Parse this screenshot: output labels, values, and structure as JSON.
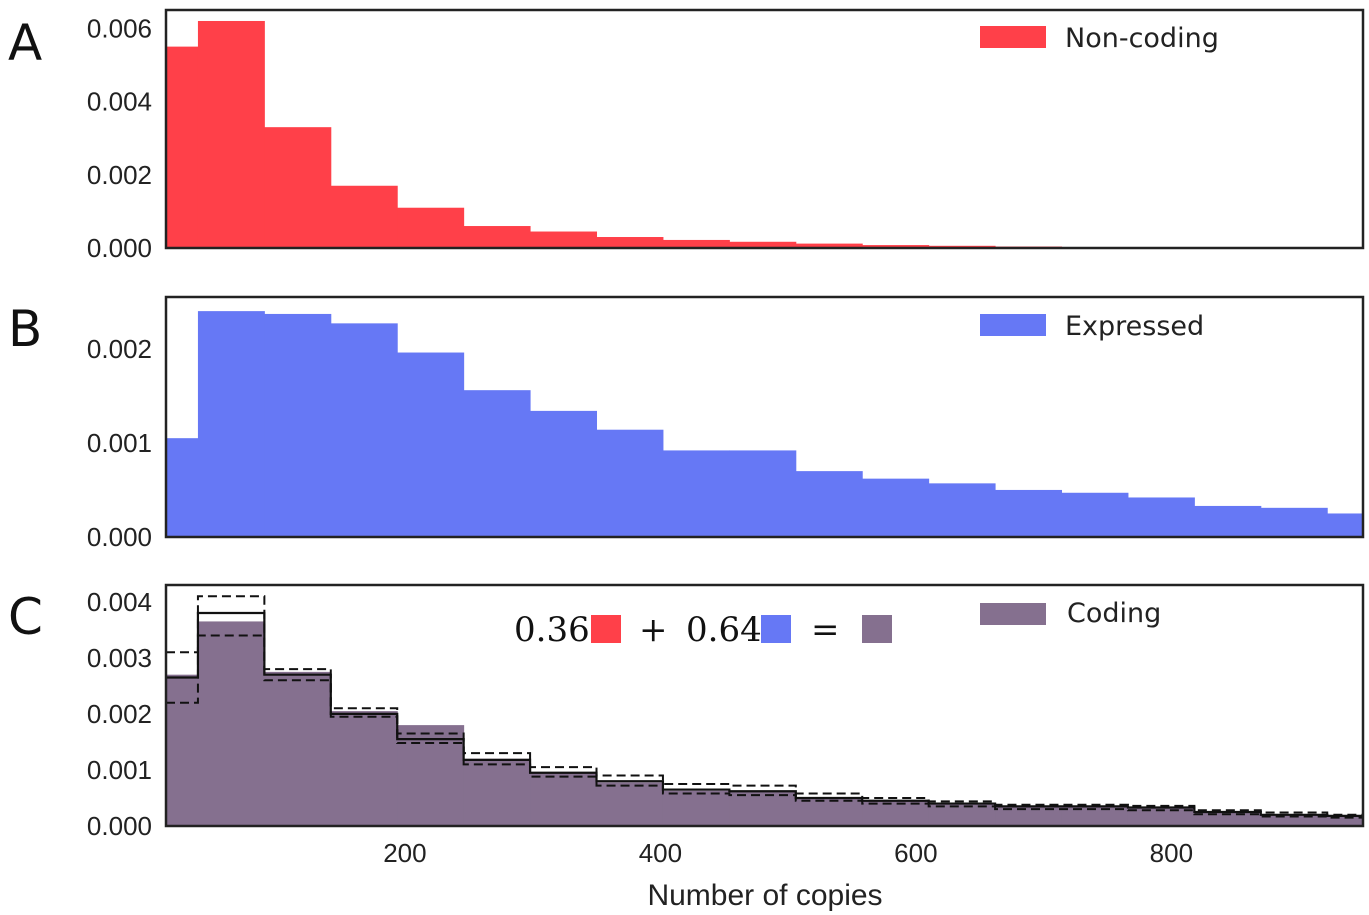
{
  "chart_data": [
    {
      "type": "bar",
      "panel_label": "A",
      "legend": "Non-coding",
      "color": "#ff4049",
      "edges": [
        13,
        38,
        90,
        142,
        194,
        246,
        298,
        350,
        402,
        454,
        506,
        558,
        610,
        662,
        714,
        766,
        818,
        870,
        922,
        950
      ],
      "values": [
        0.0055,
        0.0062,
        0.0033,
        0.0017,
        0.0011,
        0.0006,
        0.00045,
        0.0003,
        0.00022,
        0.00017,
        0.00012,
        8e-05,
        6e-05,
        4e-05,
        2e-05,
        1e-05,
        1e-05,
        1e-05,
        5e-06
      ],
      "ylim": [
        0,
        0.0065
      ],
      "yticks": [
        0.0,
        0.002,
        0.004,
        0.006
      ],
      "ytick_labels": [
        "0.000",
        "0.002",
        "0.004",
        "0.006"
      ]
    },
    {
      "type": "bar",
      "panel_label": "B",
      "legend": "Expressed",
      "color": "#6678f5",
      "edges": [
        13,
        38,
        90,
        142,
        194,
        246,
        298,
        350,
        402,
        454,
        506,
        558,
        610,
        662,
        714,
        766,
        818,
        870,
        922,
        950
      ],
      "values": [
        0.00105,
        0.0024,
        0.00237,
        0.00227,
        0.00196,
        0.00156,
        0.00134,
        0.00114,
        0.00092,
        0.00092,
        0.0007,
        0.00062,
        0.00057,
        0.0005,
        0.00047,
        0.00042,
        0.00033,
        0.00031,
        0.00025
      ],
      "ylim": [
        0,
        0.00255
      ],
      "yticks": [
        0.0,
        0.001,
        0.002
      ],
      "ytick_labels": [
        "0.000",
        "0.001",
        "0.002"
      ]
    },
    {
      "type": "bar",
      "panel_label": "C",
      "legend": "Coding",
      "color": "#85708f",
      "edges": [
        13,
        38,
        90,
        142,
        194,
        246,
        298,
        350,
        402,
        454,
        506,
        558,
        610,
        662,
        714,
        766,
        818,
        870,
        922,
        950
      ],
      "values": [
        0.0027,
        0.00365,
        0.00275,
        0.00205,
        0.0018,
        0.0012,
        0.00095,
        0.00078,
        0.00063,
        0.00061,
        0.0005,
        0.00044,
        0.00039,
        0.00034,
        0.00034,
        0.00032,
        0.00024,
        0.0002,
        0.00017
      ],
      "mixture_fit": [
        0.00265,
        0.0038,
        0.0027,
        0.002,
        0.00155,
        0.00118,
        0.00095,
        0.0008,
        0.00065,
        0.00062,
        0.0005,
        0.00045,
        0.0004,
        0.00035,
        0.00035,
        0.00033,
        0.00025,
        0.0002,
        0.00018
      ],
      "upper_bound": [
        0.0031,
        0.0041,
        0.0028,
        0.0021,
        0.00165,
        0.0013,
        0.00105,
        0.0009,
        0.00075,
        0.00072,
        0.00058,
        0.0005,
        0.00044,
        0.00038,
        0.00038,
        0.00036,
        0.00028,
        0.00024,
        0.0002
      ],
      "lower_bound": [
        0.0022,
        0.0034,
        0.0026,
        0.00195,
        0.00148,
        0.0011,
        0.00088,
        0.00072,
        0.00058,
        0.00055,
        0.00045,
        0.0004,
        0.00035,
        0.0003,
        0.0003,
        0.00028,
        0.00021,
        0.00017,
        0.00015
      ],
      "ylim": [
        0,
        0.0043
      ],
      "yticks": [
        0.0,
        0.001,
        0.002,
        0.003,
        0.004
      ],
      "ytick_labels": [
        "0.000",
        "0.001",
        "0.002",
        "0.003",
        "0.004"
      ],
      "equation": {
        "coef1": "0.36",
        "plus": "+",
        "coef2": "0.64",
        "equals": "=",
        "colors": [
          "#ff4049",
          "#6678f5",
          "#85708f"
        ]
      }
    }
  ],
  "xaxis": {
    "xlim": [
      13,
      950
    ],
    "xticks": [
      200,
      400,
      600,
      800
    ],
    "xtick_labels": [
      "200",
      "400",
      "600",
      "800"
    ],
    "xlabel": "Number of copies"
  }
}
